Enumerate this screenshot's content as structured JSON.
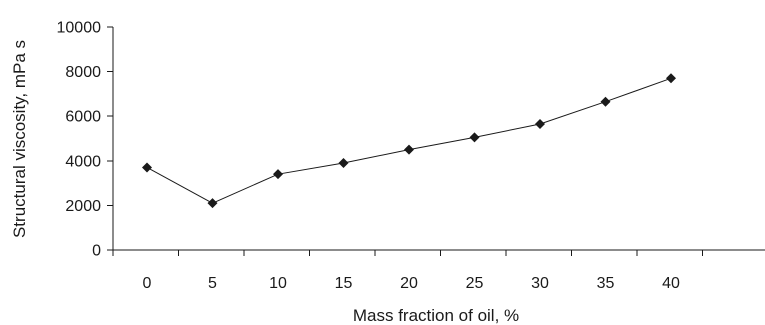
{
  "chart_data": {
    "type": "line",
    "title": "",
    "xlabel": "Mass fraction of oil, %",
    "ylabel": "Structural viscosity, mPa s",
    "x": [
      0,
      5,
      10,
      15,
      20,
      25,
      30,
      35,
      40
    ],
    "x_tick_labels": [
      "0",
      "5",
      "10",
      "15",
      "20",
      "25",
      "30",
      "35",
      "40"
    ],
    "y_tick_labels": [
      "0",
      "2000",
      "4000",
      "6000",
      "8000",
      "10000"
    ],
    "y_ticks": [
      0,
      2000,
      4000,
      6000,
      8000,
      10000
    ],
    "ylim": [
      0,
      10000
    ],
    "grid": false,
    "legend": "none",
    "marker": "diamond",
    "series": [
      {
        "values": [
          3700,
          2100,
          3400,
          3900,
          4500,
          5050,
          5650,
          6650,
          7700
        ]
      }
    ]
  }
}
